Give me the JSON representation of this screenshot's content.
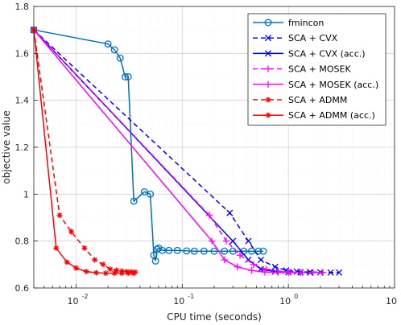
{
  "chart_data": {
    "type": "line",
    "title": "",
    "xlabel": "CPU time (seconds)",
    "ylabel": "objective value",
    "x_scale": "log",
    "xlim": [
      0.004,
      10
    ],
    "ylim": [
      0.6,
      1.8
    ],
    "grid": true,
    "legend_position": "top-right",
    "x_tick_labels": [
      "10",
      "10",
      "10",
      "10"
    ],
    "x_tick_exponents": [
      "-2",
      "-1",
      "0",
      "1"
    ],
    "y_tick_labels": [
      "0.6",
      "0.8",
      "1",
      "1.2",
      "1.4",
      "1.6",
      "1.8"
    ],
    "series": [
      {
        "name": "fmincon",
        "color": "#0072BD",
        "line": "solid",
        "marker": "circle",
        "x": [
          0.004,
          0.02,
          0.023,
          0.026,
          0.029,
          0.031,
          0.035,
          0.044,
          0.05,
          0.054,
          0.056,
          0.058,
          0.06,
          0.065,
          0.075,
          0.09,
          0.11,
          0.13,
          0.16,
          0.2,
          0.25,
          0.3,
          0.38,
          0.45,
          0.52,
          0.58
        ],
        "y": [
          1.7,
          1.64,
          1.615,
          1.58,
          1.5,
          1.5,
          0.97,
          1.01,
          1.0,
          0.74,
          0.715,
          0.765,
          0.77,
          0.76,
          0.76,
          0.76,
          0.758,
          0.757,
          0.757,
          0.757,
          0.757,
          0.757,
          0.757,
          0.757,
          0.757,
          0.757
        ]
      },
      {
        "name": "SCA + CVX",
        "color": "#0000FF",
        "line": "dashed",
        "marker": "x",
        "x": [
          0.004,
          0.28,
          0.42,
          0.55,
          0.75,
          0.95,
          1.2,
          1.6,
          2.0,
          2.5,
          3.0
        ],
        "y": [
          1.7,
          0.92,
          0.8,
          0.72,
          0.69,
          0.675,
          0.67,
          0.668,
          0.667,
          0.666,
          0.666
        ]
      },
      {
        "name": "SCA + CVX (acc.)",
        "color": "#0000FF",
        "line": "solid",
        "marker": "x",
        "x": [
          0.004,
          0.3,
          0.42,
          0.55,
          0.75,
          1.0,
          1.3,
          1.6
        ],
        "y": [
          1.7,
          0.8,
          0.72,
          0.68,
          0.67,
          0.667,
          0.666,
          0.666
        ]
      },
      {
        "name": "SCA + MOSEK",
        "color": "#FF00FF",
        "line": "dashed",
        "marker": "plus",
        "x": [
          0.004,
          0.18,
          0.26,
          0.35,
          0.47,
          0.62,
          0.8,
          1.05,
          1.35,
          1.7,
          2.1
        ],
        "y": [
          1.7,
          0.91,
          0.8,
          0.74,
          0.7,
          0.68,
          0.672,
          0.668,
          0.667,
          0.666,
          0.666
        ]
      },
      {
        "name": "SCA + MOSEK (acc.)",
        "color": "#FF00FF",
        "line": "solid",
        "marker": "plus",
        "x": [
          0.004,
          0.19,
          0.25,
          0.33,
          0.45,
          0.6,
          0.8,
          1.0,
          1.3
        ],
        "y": [
          1.7,
          0.8,
          0.72,
          0.69,
          0.675,
          0.668,
          0.666,
          0.666,
          0.666
        ]
      },
      {
        "name": "SCA + ADMM",
        "color": "#FF0000",
        "line": "dashed",
        "marker": "star",
        "x": [
          0.004,
          0.007,
          0.009,
          0.012,
          0.015,
          0.018,
          0.021,
          0.024,
          0.027,
          0.03,
          0.033,
          0.036
        ],
        "y": [
          1.7,
          0.91,
          0.84,
          0.77,
          0.72,
          0.7,
          0.68,
          0.675,
          0.672,
          0.67,
          0.669,
          0.668
        ]
      },
      {
        "name": "SCA + ADMM (acc.)",
        "color": "#FF0000",
        "line": "solid",
        "marker": "star",
        "x": [
          0.004,
          0.0065,
          0.0082,
          0.01,
          0.0125,
          0.0155,
          0.019,
          0.023,
          0.027,
          0.031,
          0.035
        ],
        "y": [
          1.7,
          0.77,
          0.71,
          0.685,
          0.67,
          0.665,
          0.663,
          0.663,
          0.663,
          0.663,
          0.663
        ]
      }
    ]
  }
}
